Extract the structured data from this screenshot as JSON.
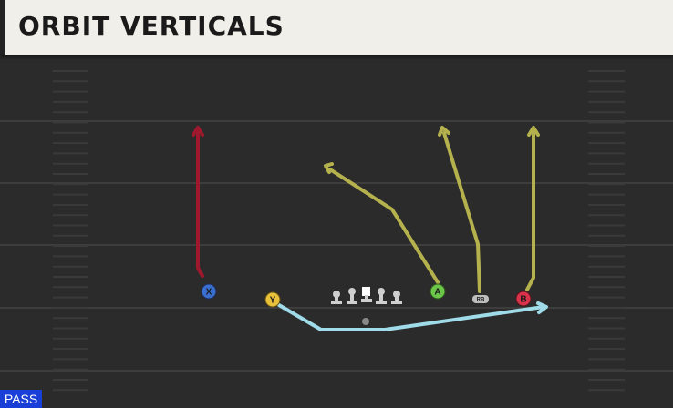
{
  "header": {
    "title": "ORBIT VERTICALS"
  },
  "players": [
    {
      "label": "X"
    },
    {
      "label": "Y"
    },
    {
      "label": "A"
    },
    {
      "label": "RB"
    },
    {
      "label": "B"
    }
  ],
  "badge": {
    "label": "PASS"
  }
}
